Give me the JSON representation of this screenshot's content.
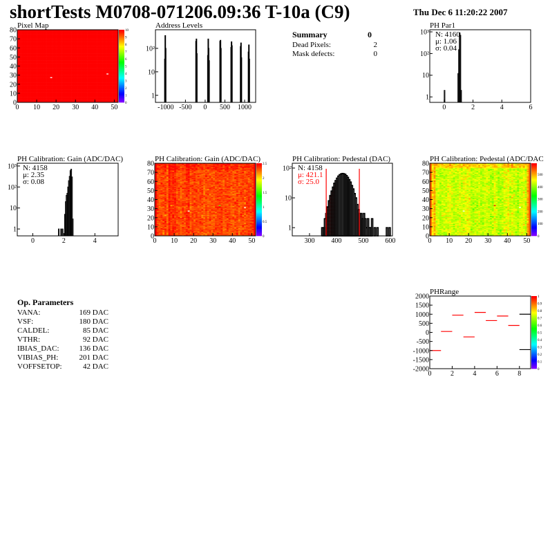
{
  "header": {
    "title": "shortTests M0708-071206.09:36 T-10a (C9)",
    "date": "Thu Dec  6 11:20:22 2007"
  },
  "summary": {
    "heading": "Summary",
    "heading_value": "0",
    "rows": [
      {
        "label": "Dead Pixels:",
        "value": "2"
      },
      {
        "label": "Mask defects:",
        "value": "0"
      }
    ]
  },
  "op_parameters": {
    "heading": "Op. Parameters",
    "rows": [
      {
        "label": "VANA:",
        "value": "169 DAC"
      },
      {
        "label": "VSF:",
        "value": "180 DAC"
      },
      {
        "label": "CALDEL:",
        "value": "85 DAC"
      },
      {
        "label": "VTHR:",
        "value": "92 DAC"
      },
      {
        "label": "IBIAS_DAC:",
        "value": "136 DAC"
      },
      {
        "label": "VIBIAS_PH:",
        "value": "201 DAC"
      },
      {
        "label": "VOFFSETOP:",
        "value": "42 DAC"
      }
    ]
  },
  "chart_data": [
    {
      "id": "pixelmap",
      "type": "heatmap",
      "title": "Pixel Map",
      "xlim": [
        0,
        52
      ],
      "ylim": [
        0,
        80
      ],
      "zlim": [
        0,
        10
      ],
      "xticks": [
        0,
        10,
        20,
        30,
        40,
        50
      ],
      "yticks": [
        0,
        10,
        20,
        30,
        40,
        50,
        60,
        70,
        80
      ],
      "zticks": [
        0,
        1,
        2,
        3,
        4,
        5,
        6,
        7,
        8,
        9,
        10
      ],
      "fill_value": 10,
      "empty_pixels": [
        [
          17,
          27
        ],
        [
          46,
          31
        ]
      ]
    },
    {
      "id": "address",
      "type": "bar",
      "title": "Address Levels",
      "xlim": [
        -1260,
        1280
      ],
      "ylim": [
        0.5,
        620
      ],
      "ylog": true,
      "xticks": [
        -1000,
        -500,
        0,
        500,
        1000
      ],
      "yticks": [
        1,
        10,
        100
      ],
      "yticklabels": [
        "1",
        "10",
        "10²"
      ],
      "bins": [
        [
          -1030,
          35
        ],
        [
          -1020,
          350
        ],
        [
          -1010,
          100
        ],
        [
          -240,
          200
        ],
        [
          -230,
          250
        ],
        [
          -220,
          60
        ],
        [
          60,
          50
        ],
        [
          70,
          250
        ],
        [
          80,
          100
        ],
        [
          90,
          30
        ],
        [
          370,
          200
        ],
        [
          380,
          220
        ],
        [
          390,
          100
        ],
        [
          650,
          110
        ],
        [
          660,
          190
        ],
        [
          670,
          130
        ],
        [
          890,
          120
        ],
        [
          900,
          170
        ],
        [
          910,
          40
        ],
        [
          1090,
          70
        ],
        [
          1100,
          140
        ],
        [
          1110,
          35
        ]
      ]
    },
    {
      "id": "phpar1",
      "type": "bar",
      "title": "PH Par1",
      "xlim": [
        -1,
        6
      ],
      "ylim": [
        0.56,
        1250
      ],
      "ylog": true,
      "xticks": [
        0,
        2,
        4,
        6
      ],
      "yticks": [
        1,
        10,
        100,
        1000
      ],
      "yticklabels": [
        "1",
        "10",
        "10²",
        "10³"
      ],
      "stats": {
        "n": "N: 4160",
        "mean": "μ: 1.06",
        "sigma": "σ: 0.04"
      },
      "bin_width": 0.05,
      "bins": [
        [
          0,
          2
        ],
        [
          0.95,
          12
        ],
        [
          1.0,
          150
        ],
        [
          1.05,
          900
        ],
        [
          1.1,
          700
        ],
        [
          1.15,
          2
        ]
      ]
    },
    {
      "id": "gainhist",
      "type": "bar",
      "title": "PH Calibration: Gain (ADC/DAC)",
      "xlim": [
        -1,
        5.5
      ],
      "ylim": [
        0.47,
        1350
      ],
      "ylog": true,
      "xticks": [
        0,
        2,
        4
      ],
      "yticks": [
        1,
        10,
        100,
        1000
      ],
      "yticklabels": [
        "1",
        "10",
        "10²",
        "10³"
      ],
      "stats": {
        "n": "N: 4158",
        "mean": "μ: 2.35",
        "sigma": "σ: 0.08"
      },
      "bin_width": 0.05,
      "bins": [
        [
          1.65,
          1
        ],
        [
          1.8,
          1
        ],
        [
          1.9,
          1
        ],
        [
          2.05,
          5
        ],
        [
          2.1,
          20
        ],
        [
          2.15,
          40
        ],
        [
          2.2,
          50
        ],
        [
          2.25,
          100
        ],
        [
          2.3,
          200
        ],
        [
          2.35,
          320
        ],
        [
          2.4,
          600
        ],
        [
          2.45,
          700
        ],
        [
          2.5,
          300
        ],
        [
          2.55,
          3
        ]
      ]
    },
    {
      "id": "gainmap",
      "type": "heatmap",
      "title": "PH Calibration: Gain (ADC/DAC)",
      "xlim": [
        0,
        52
      ],
      "ylim": [
        0,
        80
      ],
      "zlim": [
        0,
        2.5
      ],
      "xticks": [
        0,
        10,
        20,
        30,
        40,
        50
      ],
      "yticks": [
        0,
        10,
        20,
        30,
        40,
        50,
        60,
        70,
        80
      ],
      "zticks": [
        0,
        0.5,
        1,
        1.5,
        2,
        2.5
      ],
      "typical_value": 2.35,
      "spread": 0.08,
      "empty_pixels": [
        [
          17,
          27
        ],
        [
          46,
          31
        ]
      ],
      "outlier": [
        33,
        33,
        1.6
      ]
    },
    {
      "id": "pedhist",
      "type": "bar",
      "title": "PH Calibration: Pedestal (DAC)",
      "xlim": [
        236,
        608
      ],
      "ylim": [
        0.53,
        145
      ],
      "ylog": true,
      "xticks": [
        300,
        400,
        500,
        600
      ],
      "yticks": [
        1,
        10,
        100
      ],
      "yticklabels": [
        "1",
        "10",
        "10²"
      ],
      "stats": {
        "n": "N: 4158",
        "mean": "μ: 421.1",
        "sigma": "σ: 25.0"
      },
      "fit": {
        "mean": 421.1,
        "sigma": 25.0,
        "range": [
          362,
          485
        ],
        "color": "#ff0000"
      },
      "bin_width": 5,
      "bins": [
        [
          345,
          1
        ],
        [
          350,
          1
        ],
        [
          355,
          2
        ],
        [
          360,
          3
        ],
        [
          365,
          5
        ],
        [
          370,
          8
        ],
        [
          375,
          12
        ],
        [
          380,
          17
        ],
        [
          385,
          23
        ],
        [
          390,
          31
        ],
        [
          395,
          38
        ],
        [
          400,
          46
        ],
        [
          405,
          54
        ],
        [
          410,
          60
        ],
        [
          415,
          64
        ],
        [
          420,
          66
        ],
        [
          425,
          65
        ],
        [
          430,
          62
        ],
        [
          435,
          56
        ],
        [
          440,
          49
        ],
        [
          445,
          41
        ],
        [
          450,
          34
        ],
        [
          455,
          26
        ],
        [
          460,
          20
        ],
        [
          465,
          14
        ],
        [
          470,
          10
        ],
        [
          475,
          6
        ],
        [
          480,
          4
        ],
        [
          485,
          3
        ],
        [
          490,
          3
        ],
        [
          495,
          2
        ],
        [
          500,
          3
        ],
        [
          505,
          2
        ],
        [
          510,
          1
        ],
        [
          515,
          2
        ],
        [
          520,
          1
        ],
        [
          525,
          1
        ],
        [
          530,
          2
        ],
        [
          540,
          1
        ],
        [
          550,
          1
        ],
        [
          585,
          1
        ],
        [
          595,
          1
        ]
      ]
    },
    {
      "id": "pedmap",
      "type": "heatmap",
      "title": "PH Calibration: Pedestal (ADC/DAC",
      "xlim": [
        0,
        52
      ],
      "ylim": [
        0,
        80
      ],
      "zlim": [
        0,
        590
      ],
      "xticks": [
        0,
        10,
        20,
        30,
        40,
        50
      ],
      "yticks": [
        0,
        10,
        20,
        30,
        40,
        50,
        60,
        70,
        80
      ],
      "zticks": [
        0,
        100,
        200,
        300,
        400,
        500
      ],
      "typical_value": 430,
      "spread": 25,
      "empty_pixels": [
        [
          17,
          27
        ],
        [
          46,
          31
        ]
      ],
      "outlier": [
        33,
        33,
        585
      ]
    },
    {
      "id": "phrange",
      "type": "bar",
      "title": "PHRange",
      "xlim": [
        0,
        9
      ],
      "ylim": [
        -2000,
        2000
      ],
      "xticks": [
        0,
        2,
        4,
        6,
        8
      ],
      "yticks": [
        -2000,
        -1500,
        -1000,
        -500,
        0,
        500,
        1000,
        1500,
        2000
      ],
      "zticks": [
        0,
        0.1,
        0.2,
        0.3,
        0.4,
        0.5,
        0.6,
        0.7,
        0.8,
        0.9,
        1
      ],
      "bins": [
        [
          0,
          -1000
        ],
        [
          1,
          50
        ],
        [
          2,
          950
        ],
        [
          3,
          -250
        ],
        [
          4,
          1100
        ],
        [
          5,
          650
        ],
        [
          6,
          900
        ],
        [
          7,
          380
        ],
        [
          8,
          1000
        ],
        [
          8,
          -950
        ]
      ]
    }
  ]
}
